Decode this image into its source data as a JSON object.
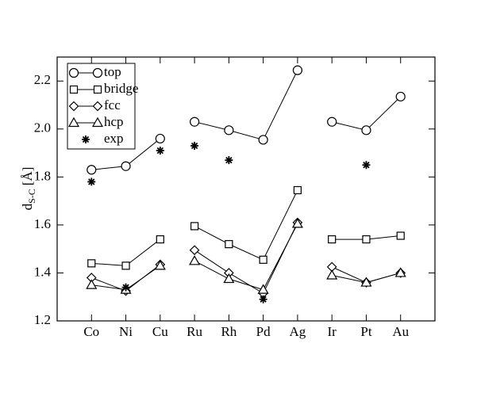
{
  "chart_data": {
    "type": "line",
    "y_label": {
      "main": "d",
      "sub": "S-C",
      "unit": "[Å]"
    },
    "categories": [
      "Co",
      "Ni",
      "Cu",
      "Ru",
      "Rh",
      "Pd",
      "Ag",
      "Ir",
      "Pt",
      "Au"
    ],
    "line_breaks": [
      3,
      7
    ],
    "series": [
      {
        "name": "top",
        "color": "#000000",
        "marker": "circle",
        "line": true,
        "values": [
          1.83,
          1.845,
          1.96,
          2.03,
          1.995,
          1.955,
          2.245,
          2.03,
          1.995,
          2.135
        ]
      },
      {
        "name": "bridge",
        "color": "#000000",
        "marker": "square",
        "line": true,
        "values": [
          1.44,
          1.43,
          1.54,
          1.595,
          1.52,
          1.455,
          1.745,
          1.54,
          1.54,
          1.555
        ]
      },
      {
        "name": "fcc",
        "color": "#000000",
        "marker": "diamond",
        "line": true,
        "values": [
          1.38,
          1.325,
          1.435,
          1.495,
          1.4,
          1.315,
          1.61,
          1.425,
          1.36,
          1.4
        ]
      },
      {
        "name": "hcp",
        "color": "#000000",
        "marker": "triangle",
        "line": true,
        "values": [
          1.35,
          1.33,
          1.43,
          1.45,
          1.375,
          1.33,
          1.605,
          1.39,
          1.36,
          1.4
        ]
      },
      {
        "name": "exp",
        "color": "#000000",
        "marker": "star",
        "line": false,
        "values": [
          1.78,
          1.34,
          1.91,
          1.93,
          1.87,
          1.29,
          null,
          null,
          1.85,
          null
        ]
      }
    ],
    "ylim": [
      1.2,
      2.3
    ],
    "yticks": [
      1.2,
      1.4,
      1.6,
      1.8,
      {
        "value": 2,
        "label": "2.0"
      },
      2.2
    ],
    "legend": "top-left",
    "grid": false
  }
}
